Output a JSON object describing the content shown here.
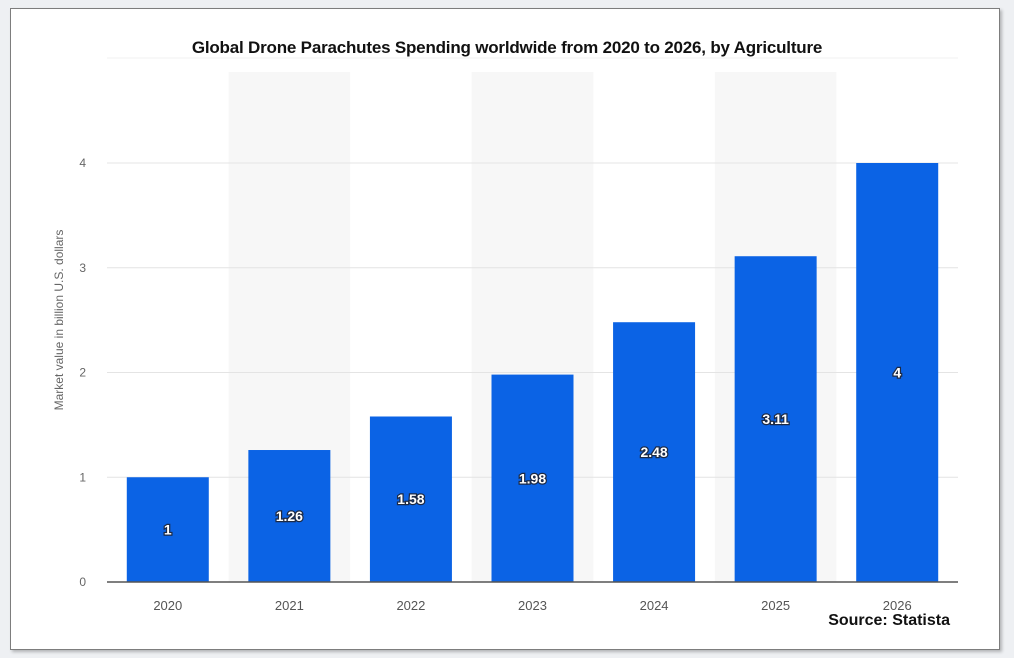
{
  "chart_data": {
    "type": "bar",
    "title": "Global Drone Parachutes Spending worldwide from 2020 to 2026, by Agriculture",
    "categories": [
      "2020",
      "2021",
      "2022",
      "2023",
      "2024",
      "2025",
      "2026"
    ],
    "values": [
      1,
      1.26,
      1.58,
      1.98,
      2.48,
      3.11,
      4
    ],
    "value_labels": [
      "1",
      "1.26",
      "1.58",
      "1.98",
      "2.48",
      "3.11",
      "4"
    ],
    "ylabel": "Market value in billion U.S. dollars",
    "xlabel": "",
    "ylim": [
      0,
      4
    ],
    "yticks": [
      "0",
      "1",
      "2",
      "3",
      "4"
    ],
    "grid": true,
    "source": "Source: Statista",
    "colors": {
      "bar": "#0b63e5",
      "band": "#f7f7f7",
      "grid": "#e4e4e4",
      "axis": "#555555"
    }
  }
}
